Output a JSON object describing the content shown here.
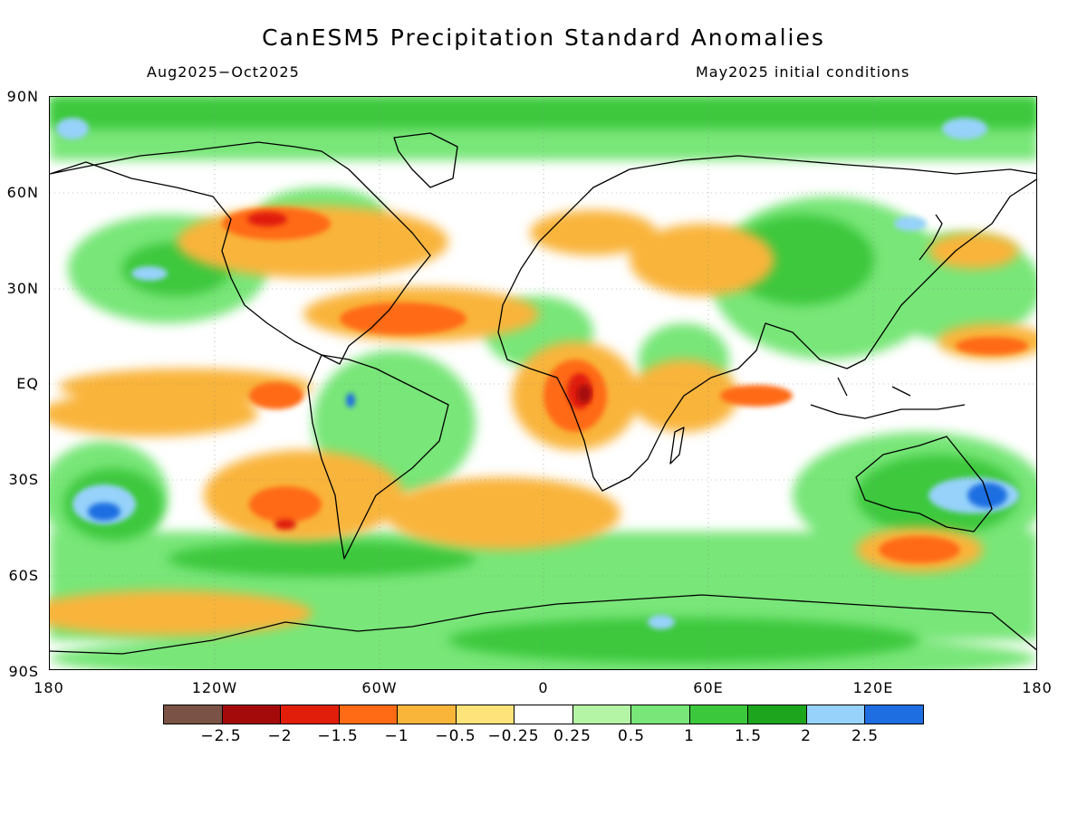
{
  "title": "CanESM5 Precipitation Standard Anomalies",
  "period": "Aug2025−Oct2025",
  "init": "May2025 initial conditions",
  "lat_labels": [
    "90N",
    "60N",
    "30N",
    "EQ",
    "30S",
    "60S",
    "90S"
  ],
  "lon_labels": [
    "180",
    "120W",
    "60W",
    "0",
    "60E",
    "120E",
    "180"
  ],
  "colorbar": {
    "colors": [
      "#7a5246",
      "#a50a0a",
      "#e01e0a",
      "#ff6a14",
      "#f9b43a",
      "#fde37a",
      "#ffffff",
      "#b4f5a5",
      "#78e678",
      "#3cc83c",
      "#1ea51e",
      "#96d2fa",
      "#1e6ee1"
    ],
    "labels": [
      "−2.5",
      "−2",
      "−1.5",
      "−1",
      "−0.5",
      "−0.25",
      "0.25",
      "0.5",
      "1",
      "1.5",
      "2",
      "2.5"
    ]
  },
  "map_colors": {
    "ocean_base": "#ffffff",
    "coast": "#000000"
  }
}
